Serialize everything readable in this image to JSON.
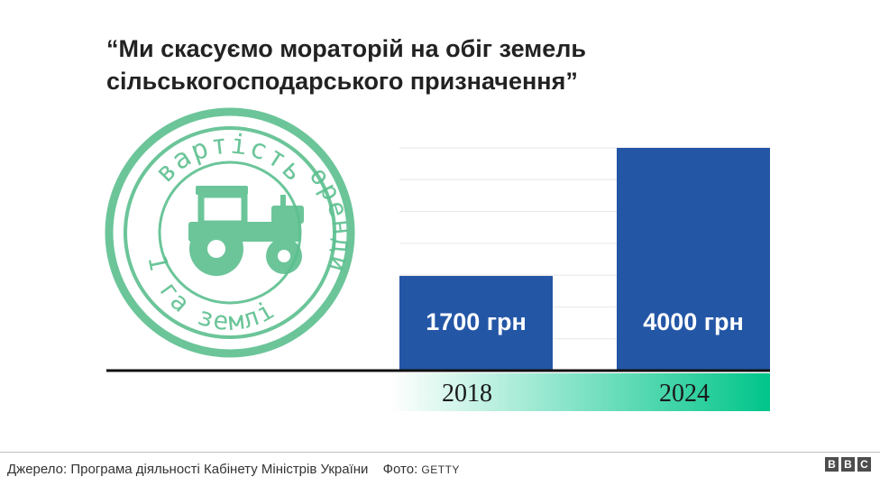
{
  "title": "“Ми скасуємо мораторій на обіг земель сільськогосподарського призначення”",
  "stamp": {
    "top_text": "вартість",
    "right_text": "оренди",
    "left_text": "1 га землі",
    "icon": "tractor-icon",
    "color": "#5bbf8e"
  },
  "chart_data": {
    "type": "bar",
    "categories": [
      "2018",
      "2024"
    ],
    "values": [
      1700,
      4000
    ],
    "value_labels": [
      "1700 грн",
      "4000 грн"
    ],
    "ylim": [
      0,
      4000
    ],
    "grid": true,
    "colors": {
      "bar": "#2456a6",
      "band_start": "#ffffff",
      "band_end": "#00c58a"
    }
  },
  "footer": {
    "source": "Джерело: Програма діяльності Кабінету Міністрів України",
    "photo_label": "Фото:",
    "photo_credit": "GETTY",
    "logo": [
      "B",
      "B",
      "C"
    ]
  }
}
